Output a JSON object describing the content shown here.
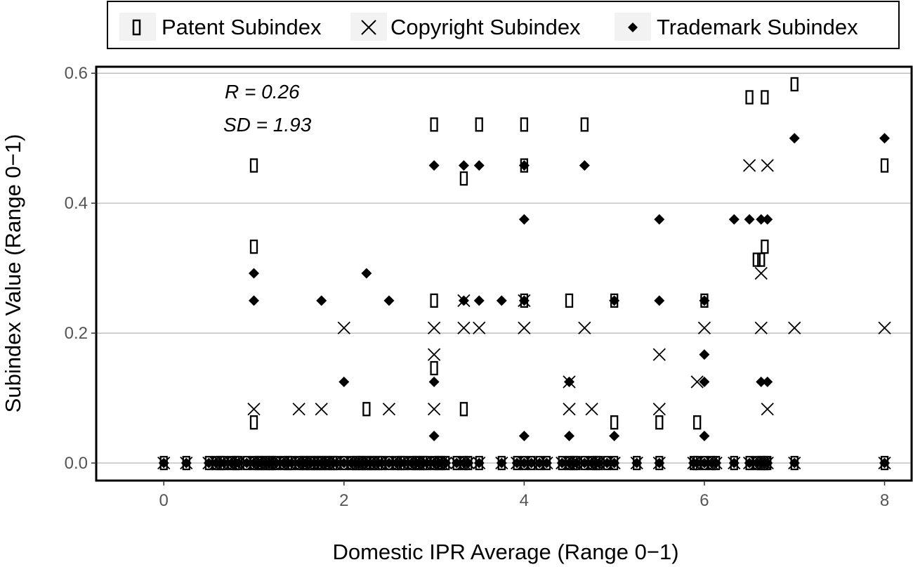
{
  "chart_data": {
    "type": "scatter",
    "xlabel": "Domestic IPR Average (Range 0−1)",
    "ylabel": "Subindex Value (Range 0−1)",
    "xlim": [
      -0.75,
      8.3
    ],
    "ylim": [
      -0.027,
      0.61
    ],
    "x_ticks": [
      "0",
      "2",
      "4",
      "6",
      "8"
    ],
    "x_tick_values": [
      0,
      2,
      4,
      6,
      8
    ],
    "y_ticks": [
      "0.0",
      "0.2",
      "0.4",
      "0.6"
    ],
    "y_tick_values": [
      0,
      0.2,
      0.4,
      0.6
    ],
    "grid": "horizontal major",
    "legend_position": "top",
    "annotations": [
      "R =  0.26",
      "SD =  1.93"
    ],
    "colors": {
      "marker": "#000000",
      "grid": "#b3b3b3",
      "panel_border": "#000000"
    },
    "series": [
      {
        "name": "Patent Subindex",
        "marker": "open-rectangle",
        "points": [
          [
            1.0,
            0.458
          ],
          [
            1.0,
            0.333
          ],
          [
            1.0,
            0.0625
          ],
          [
            2.25,
            0.083
          ],
          [
            3.0,
            0.521
          ],
          [
            3.0,
            0.25
          ],
          [
            3.0,
            0.146
          ],
          [
            3.33,
            0.438
          ],
          [
            3.33,
            0.083
          ],
          [
            3.5,
            0.521
          ],
          [
            4.0,
            0.521
          ],
          [
            4.0,
            0.458
          ],
          [
            4.0,
            0.25
          ],
          [
            4.5,
            0.25
          ],
          [
            4.67,
            0.521
          ],
          [
            5.0,
            0.25
          ],
          [
            5.0,
            0.0625
          ],
          [
            5.5,
            0.0625
          ],
          [
            5.92,
            0.0625
          ],
          [
            6.0,
            0.25
          ],
          [
            6.5,
            0.563
          ],
          [
            6.58,
            0.313
          ],
          [
            6.63,
            0.313
          ],
          [
            6.67,
            0.563
          ],
          [
            6.67,
            0.333
          ],
          [
            7.0,
            0.583
          ],
          [
            8.0,
            0.458
          ]
        ]
      },
      {
        "name": "Copyright Subindex",
        "marker": "x",
        "points": [
          [
            1.0,
            0.083
          ],
          [
            1.5,
            0.083
          ],
          [
            1.75,
            0.083
          ],
          [
            2.0,
            0.208
          ],
          [
            2.5,
            0.083
          ],
          [
            3.0,
            0.208
          ],
          [
            3.0,
            0.167
          ],
          [
            3.0,
            0.083
          ],
          [
            3.33,
            0.25
          ],
          [
            3.33,
            0.208
          ],
          [
            3.5,
            0.208
          ],
          [
            4.0,
            0.25
          ],
          [
            4.0,
            0.208
          ],
          [
            4.5,
            0.125
          ],
          [
            4.5,
            0.083
          ],
          [
            4.67,
            0.208
          ],
          [
            4.75,
            0.083
          ],
          [
            5.5,
            0.167
          ],
          [
            5.5,
            0.083
          ],
          [
            5.92,
            0.125
          ],
          [
            6.0,
            0.208
          ],
          [
            6.5,
            0.458
          ],
          [
            6.63,
            0.292
          ],
          [
            6.63,
            0.208
          ],
          [
            6.7,
            0.458
          ],
          [
            6.7,
            0.083
          ],
          [
            7.0,
            0.208
          ],
          [
            8.0,
            0.208
          ]
        ]
      },
      {
        "name": "Trademark Subindex",
        "marker": "filled-diamond",
        "points": [
          [
            1.0,
            0.292
          ],
          [
            1.0,
            0.25
          ],
          [
            1.75,
            0.25
          ],
          [
            2.0,
            0.125
          ],
          [
            2.25,
            0.292
          ],
          [
            2.5,
            0.25
          ],
          [
            3.0,
            0.458
          ],
          [
            3.0,
            0.125
          ],
          [
            3.0,
            0.0417
          ],
          [
            3.33,
            0.458
          ],
          [
            3.33,
            0.25
          ],
          [
            3.5,
            0.458
          ],
          [
            3.5,
            0.25
          ],
          [
            3.75,
            0.25
          ],
          [
            4.0,
            0.458
          ],
          [
            4.0,
            0.375
          ],
          [
            4.0,
            0.25
          ],
          [
            4.0,
            0.0417
          ],
          [
            4.5,
            0.125
          ],
          [
            4.5,
            0.0417
          ],
          [
            4.67,
            0.458
          ],
          [
            5.0,
            0.25
          ],
          [
            5.0,
            0.0417
          ],
          [
            5.5,
            0.375
          ],
          [
            5.5,
            0.25
          ],
          [
            6.0,
            0.25
          ],
          [
            6.0,
            0.167
          ],
          [
            6.0,
            0.125
          ],
          [
            6.0,
            0.0417
          ],
          [
            6.33,
            0.375
          ],
          [
            6.5,
            0.375
          ],
          [
            6.63,
            0.375
          ],
          [
            6.7,
            0.375
          ],
          [
            6.63,
            0.125
          ],
          [
            6.7,
            0.125
          ],
          [
            7.0,
            0.5
          ],
          [
            8.0,
            0.5
          ]
        ]
      }
    ],
    "zero_row_x": [
      0,
      0.25,
      0.5,
      0.58,
      0.63,
      0.67,
      0.75,
      0.8,
      0.83,
      0.92,
      1.0,
      1.05,
      1.08,
      1.13,
      1.17,
      1.2,
      1.25,
      1.33,
      1.38,
      1.42,
      1.5,
      1.55,
      1.58,
      1.63,
      1.67,
      1.71,
      1.75,
      1.8,
      1.83,
      1.88,
      1.92,
      2.0,
      2.08,
      2.13,
      2.17,
      2.2,
      2.25,
      2.29,
      2.33,
      2.38,
      2.42,
      2.5,
      2.58,
      2.63,
      2.67,
      2.75,
      2.8,
      2.83,
      2.88,
      2.92,
      3.0,
      3.05,
      3.08,
      3.13,
      3.25,
      3.33,
      3.38,
      3.5,
      3.75,
      3.92,
      4.0,
      4.08,
      4.17,
      4.25,
      4.42,
      4.5,
      4.55,
      4.58,
      4.67,
      4.75,
      4.8,
      4.83,
      4.92,
      5.0,
      5.25,
      5.5,
      5.88,
      5.92,
      6.0,
      6.08,
      6.13,
      6.33,
      6.5,
      6.58,
      6.63,
      6.67,
      6.7,
      7.0,
      8.0
    ]
  }
}
